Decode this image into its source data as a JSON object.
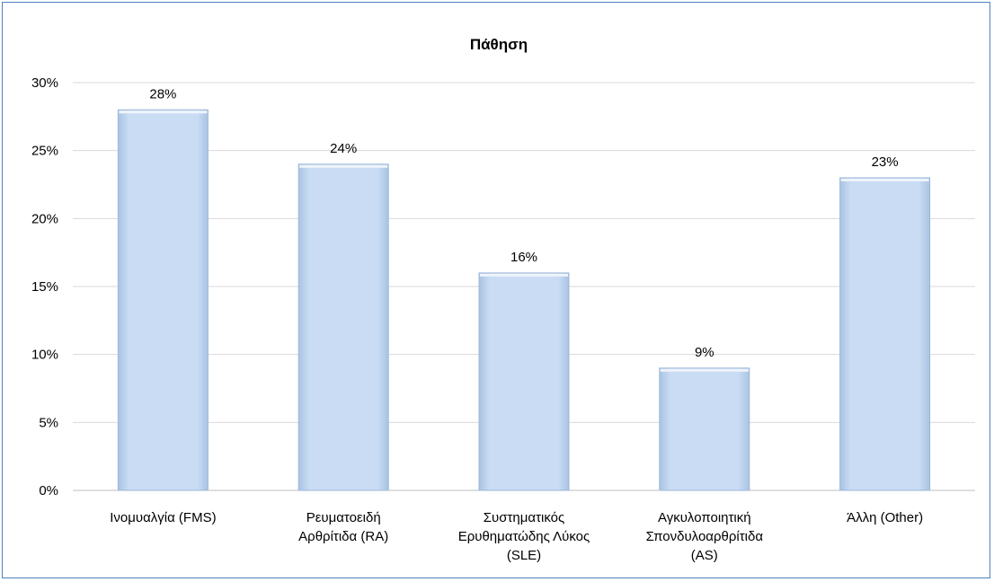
{
  "chart_data": {
    "type": "bar",
    "title": "Πάθηση",
    "categories": [
      "Ινομυαλγία (FMS)",
      "Ρευματοειδή Αρθρίτιδα (RA)",
      "Συστηματικός Ερυθηματώδης Λύκος (SLE)",
      "Αγκυλοποιητική Σπονδυλοαρθρίτιδα (AS)",
      "Άλλη (Other)"
    ],
    "category_lines": [
      [
        "Ινομυαλγία (FMS)"
      ],
      [
        "Ρευματοειδή",
        "Αρθρίτιδα (RA)"
      ],
      [
        "Συστηματικός",
        "Ερυθηματώδης Λύκος",
        "(SLE)"
      ],
      [
        "Αγκυλοποιητική",
        "Σπονδυλοαρθρίτιδα",
        "(AS)"
      ],
      [
        "Άλλη (Other)"
      ]
    ],
    "values": [
      28,
      24,
      16,
      9,
      23
    ],
    "data_labels": [
      "28%",
      "24%",
      "16%",
      "9%",
      "23%"
    ],
    "ylim": [
      0,
      30
    ],
    "yticks": [
      0,
      5,
      10,
      15,
      20,
      25,
      30
    ],
    "ytick_labels": [
      "0%",
      "5%",
      "10%",
      "15%",
      "20%",
      "25%",
      "30%"
    ],
    "grid": true,
    "legend": "none",
    "colors": {
      "bar_fill": "#c6d9f1",
      "bar_edge": "#9fb8d8",
      "grid": "#d9d9d9",
      "axis": "#bfbfbf",
      "frame": "#4f81bd"
    }
  }
}
